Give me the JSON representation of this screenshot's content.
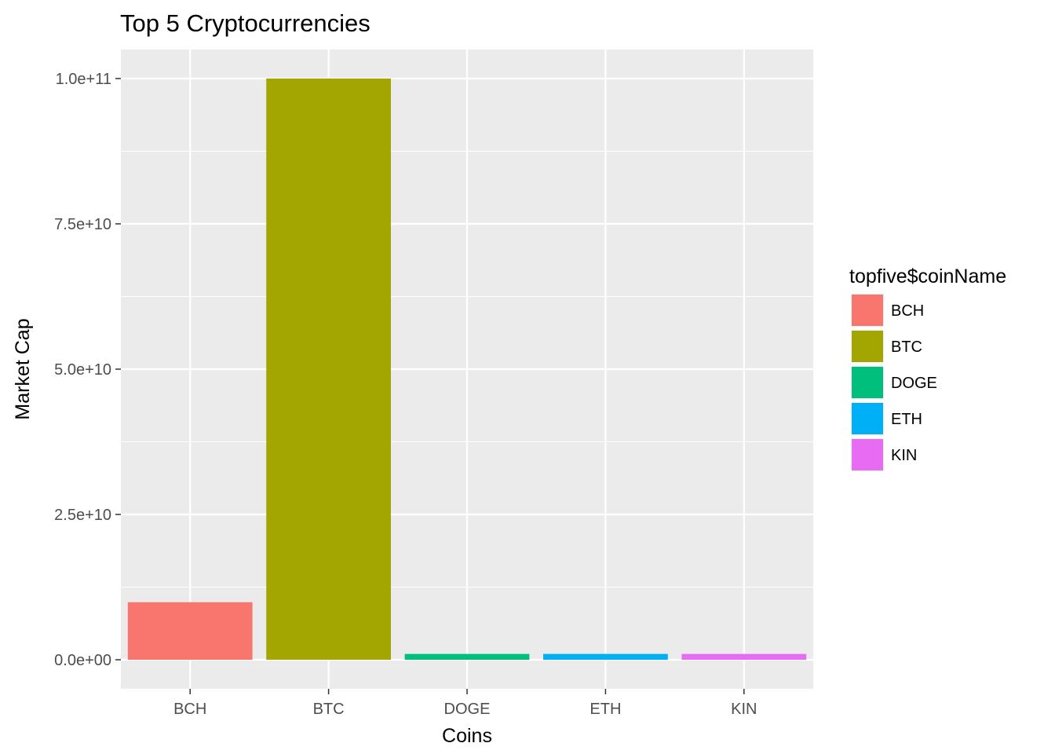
{
  "chart_data": {
    "type": "bar",
    "title": "Top 5 Cryptocurrencies",
    "xlabel": "Coins",
    "ylabel": "Market Cap",
    "categories": [
      "BCH",
      "BTC",
      "DOGE",
      "ETH",
      "KIN"
    ],
    "values": [
      9900000000,
      100000000000,
      1000000000,
      1000000000,
      1000000000
    ],
    "colors": [
      "#F8766D",
      "#A3A500",
      "#00BF7D",
      "#00B0F6",
      "#E76BF3"
    ],
    "ylim": [
      -5000000000,
      105000000000
    ],
    "yticks": [
      0,
      25000000000,
      50000000000,
      75000000000,
      100000000000
    ],
    "ytick_labels": [
      "0.0e+00",
      "2.5e+10",
      "5.0e+10",
      "7.5e+10",
      "1.0e+11"
    ],
    "grid": true,
    "panel_background": "#EBEBEB",
    "legend": {
      "title": "topfive$coinName",
      "position": "right",
      "entries": [
        "BCH",
        "BTC",
        "DOGE",
        "ETH",
        "KIN"
      ]
    }
  }
}
